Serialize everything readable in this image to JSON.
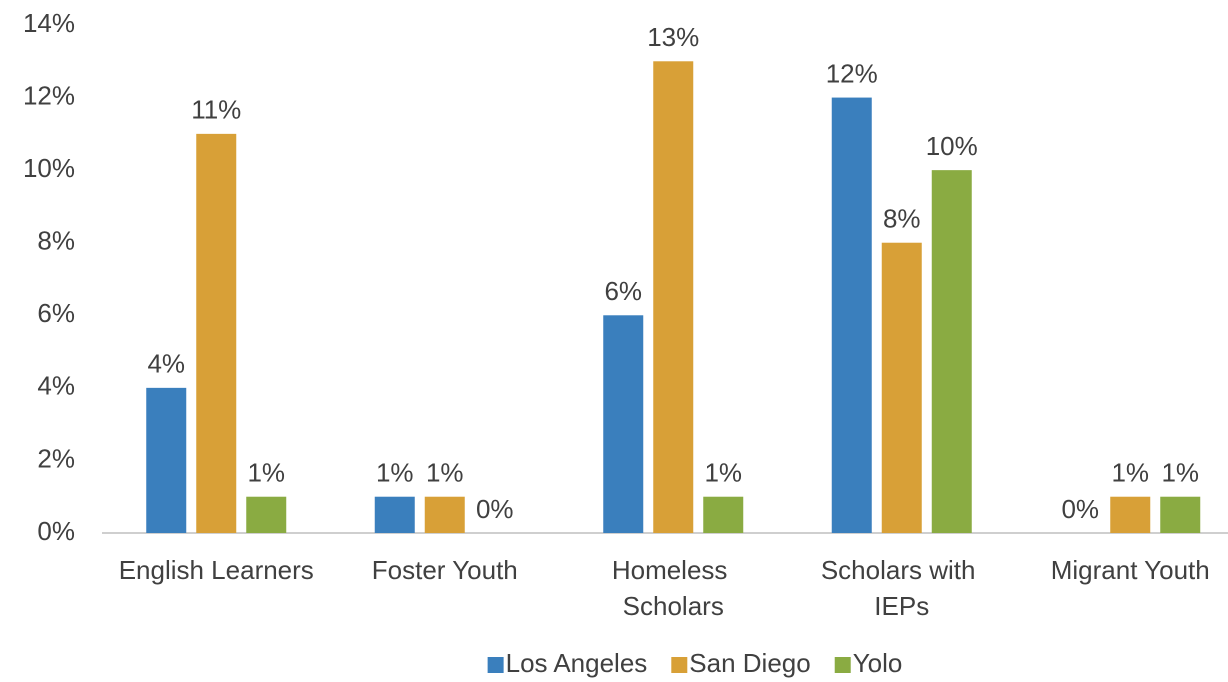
{
  "chart_data": {
    "type": "bar",
    "categories": [
      "English Learners",
      "Foster Youth",
      "Homeless Scholars",
      "Scholars with IEPs",
      "Migrant Youth"
    ],
    "series": [
      {
        "name": "Los Angeles",
        "color": "#3a7fbd",
        "values": [
          4,
          1,
          6,
          12,
          0
        ],
        "value_labels": [
          "4%",
          "1%",
          "6%",
          "12%",
          "0%"
        ]
      },
      {
        "name": "San Diego",
        "color": "#d8a037",
        "values": [
          11,
          1,
          13,
          8,
          1
        ],
        "value_labels": [
          "11%",
          "1%",
          "13%",
          "8%",
          "1%"
        ]
      },
      {
        "name": "Yolo",
        "color": "#8aab42",
        "values": [
          1,
          0,
          1,
          10,
          1
        ],
        "value_labels": [
          "1%",
          "0%",
          "1%",
          "10%",
          "1%"
        ]
      }
    ],
    "ylim": [
      0,
      14
    ],
    "yticks": [
      {
        "value": 0,
        "label": "0%"
      },
      {
        "value": 2,
        "label": "2%"
      },
      {
        "value": 4,
        "label": "4%"
      },
      {
        "value": 6,
        "label": "6%"
      },
      {
        "value": 8,
        "label": "8%"
      },
      {
        "value": 10,
        "label": "10%"
      },
      {
        "value": 12,
        "label": "12%"
      },
      {
        "value": 14,
        "label": "14%"
      }
    ],
    "grid": false,
    "legend": "bottom"
  }
}
